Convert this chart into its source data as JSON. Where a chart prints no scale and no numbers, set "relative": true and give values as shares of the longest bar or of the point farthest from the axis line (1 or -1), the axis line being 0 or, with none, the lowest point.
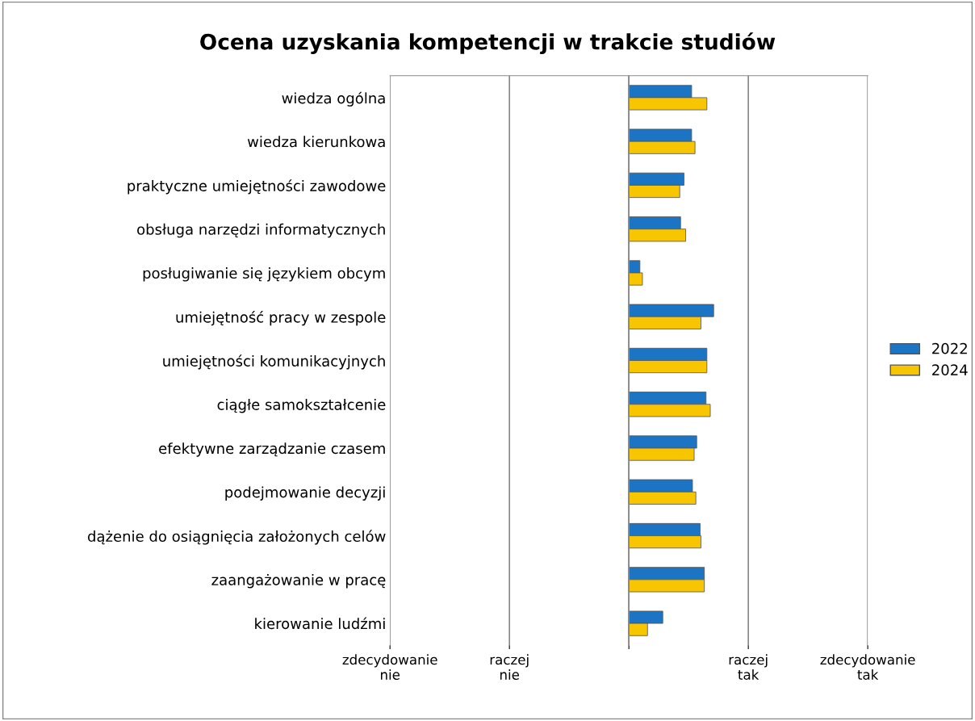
{
  "chart_data": {
    "type": "bar",
    "orientation": "horizontal",
    "relative": true,
    "title": "Ocena uzyskania kompetencji w trakcie studiów",
    "categories": [
      "wiedza ogólna",
      "wiedza kierunkowa",
      "praktyczne umiejętności zawodowe",
      "obsługa narzędzi informatycznych",
      "posługiwanie się językiem obcym",
      "umiejętność pracy w zespole",
      "umiejętności komunikacyjnych",
      "ciągłe samokształcenie",
      "efektywne zarządzanie czasem",
      "podejmowanie decyzji",
      "dążenie do osiągnięcia założonych celów",
      "zaangażowanie w pracę",
      "kierowanie ludźmi"
    ],
    "series": [
      {
        "name": "2022",
        "color": "#1b75c4",
        "values": [
          0.74,
          0.74,
          0.65,
          0.61,
          0.13,
          1,
          0.92,
          0.91,
          0.8,
          0.75,
          0.84,
          0.89,
          0.4
        ]
      },
      {
        "name": "2024",
        "color": "#f7c600",
        "values": [
          0.92,
          0.78,
          0.6,
          0.67,
          0.16,
          0.85,
          0.92,
          0.96,
          0.77,
          0.79,
          0.85,
          0.89,
          0.22
        ]
      }
    ],
    "annotations": [
      "zdecydowanie\nnie",
      "raczej\nnie",
      "raczej\ntak",
      "zdecydowanie\ntak"
    ],
    "grid": "x",
    "legend": "right"
  }
}
